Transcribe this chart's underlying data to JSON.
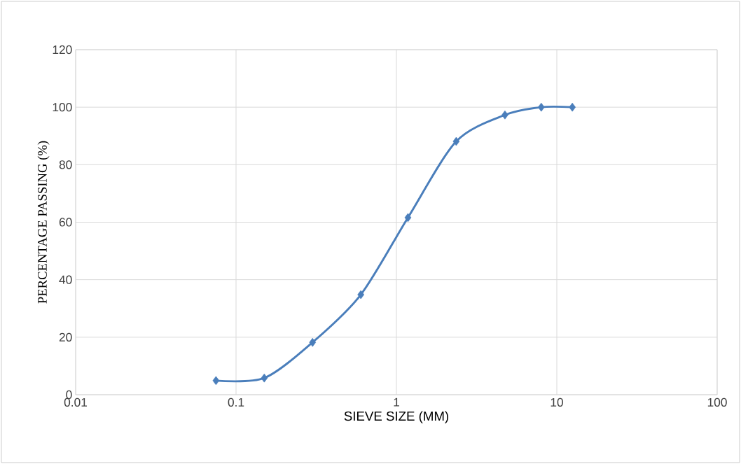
{
  "chart_data": {
    "type": "line",
    "xlabel": "SIEVE SIZE (MM)",
    "ylabel": "PERCENTAGE  PASSING (%)",
    "x": [
      0.075,
      0.15,
      0.3,
      0.6,
      1.18,
      2.36,
      4.75,
      8,
      12.5
    ],
    "series": [
      {
        "color": "#4a7ebb",
        "values": [
          4.9,
          5.8,
          18.2,
          34.8,
          61.6,
          88.1,
          97.3,
          100,
          100
        ]
      }
    ],
    "log": "x",
    "xlim": [
      0.01,
      100
    ],
    "ylim": [
      0,
      120
    ],
    "xticks": [
      {
        "value": 0.01,
        "label": "0.01"
      },
      {
        "value": 0.1,
        "label": "0.1"
      },
      {
        "value": 1,
        "label": "1"
      },
      {
        "value": 10,
        "label": "10"
      },
      {
        "value": 100,
        "label": "100"
      }
    ],
    "yticks": [
      0,
      20,
      40,
      60,
      80,
      100,
      120
    ],
    "grid": true,
    "marker": "diamond",
    "line_style": "solid"
  }
}
